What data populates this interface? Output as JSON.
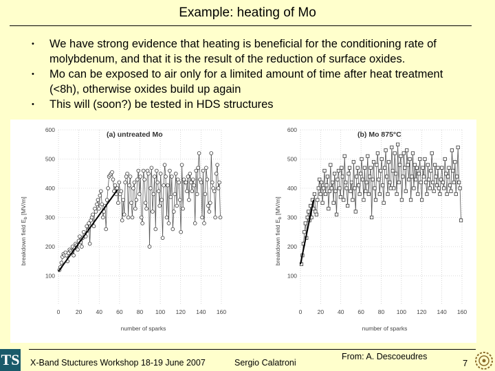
{
  "slide": {
    "title": "Example: heating of Mo",
    "bullets": [
      "We have strong evidence that heating is beneficial for the conditioning rate of molybdenum, and that it is the result of the reduction of surface oxides.",
      "Mo can be exposed to air only for a limited amount of time after heat treatment (<8h), otherwise oxides build up again",
      "This will (soon?) be tested in HDS structures"
    ],
    "bullet_glyph": "•"
  },
  "footer": {
    "event": "X-Band Stuctures Workshop 18-19 June 2007",
    "author": "Sergio Calatroni",
    "credit": "From: A. Descoeudres",
    "page": "7",
    "logo_left_icon": "ts-logo-icon",
    "logo_right_icon": "gear-emblem-icon",
    "logo_left_text": "TS"
  },
  "chart_data": [
    {
      "type": "scatter",
      "title": "(a) untreated Mo",
      "xlabel": "number of sparks",
      "ylabel": "breakdown field E",
      "ylabel_subscript": "b",
      "ylabel_unit": "[MV/m]",
      "xlim": [
        0,
        160
      ],
      "ylim": [
        0,
        600
      ],
      "xticks": [
        0,
        20,
        40,
        60,
        80,
        100,
        120,
        140,
        160
      ],
      "yticks": [
        100,
        200,
        300,
        400,
        500,
        600
      ],
      "marker": "circle",
      "points_y": [
        120,
        130,
        145,
        165,
        175,
        170,
        180,
        170,
        150,
        178,
        190,
        185,
        180,
        200,
        170,
        195,
        210,
        205,
        190,
        220,
        235,
        215,
        200,
        230,
        250,
        240,
        235,
        270,
        255,
        280,
        210,
        290,
        300,
        310,
        270,
        330,
        320,
        345,
        360,
        330,
        375,
        390,
        345,
        300,
        320,
        340,
        260,
        360,
        400,
        440,
        445,
        450,
        455,
        430,
        390,
        410,
        380,
        400,
        350,
        420,
        380,
        390,
        290,
        360,
        310,
        420,
        440,
        450,
        300,
        410,
        440,
        350,
        300,
        400,
        420,
        330,
        360,
        430,
        460,
        380,
        440,
        300,
        280,
        460,
        430,
        350,
        330,
        460,
        450,
        200,
        400,
        470,
        320,
        380,
        440,
        260,
        460,
        420,
        390,
        340,
        450,
        360,
        230,
        410,
        480,
        440,
        300,
        410,
        280,
        460,
        370,
        440,
        260,
        320,
        380,
        450,
        340,
        430,
        420,
        360,
        250,
        480,
        330,
        430,
        420,
        420,
        390,
        440,
        360,
        450,
        420,
        390,
        430,
        410,
        280,
        460,
        380,
        470,
        520,
        430,
        420,
        300,
        460,
        280,
        380,
        470,
        430,
        340,
        320,
        350,
        520,
        420,
        400,
        390,
        300,
        450,
        480,
        400,
        420,
        300
      ],
      "trend_line": {
        "x": [
          0,
          58
        ],
        "y": [
          115,
          395
        ]
      }
    },
    {
      "type": "scatter",
      "title": "(b) Mo 875°C",
      "xlabel": "number of sparks",
      "ylabel": "breakdown field E",
      "ylabel_subscript": "b",
      "ylabel_unit": "[MV/m]",
      "xlim": [
        0,
        160
      ],
      "ylim": [
        0,
        600
      ],
      "xticks": [
        0,
        20,
        40,
        60,
        80,
        100,
        120,
        140,
        160
      ],
      "yticks": [
        100,
        200,
        300,
        400,
        500,
        600
      ],
      "marker": "square",
      "points_y": [
        140,
        170,
        210,
        250,
        280,
        230,
        300,
        320,
        290,
        340,
        300,
        360,
        330,
        380,
        320,
        310,
        360,
        400,
        430,
        380,
        420,
        350,
        400,
        460,
        380,
        410,
        440,
        330,
        390,
        480,
        400,
        420,
        350,
        450,
        390,
        310,
        430,
        460,
        400,
        370,
        470,
        440,
        360,
        510,
        420,
        400,
        340,
        450,
        470,
        390,
        420,
        360,
        490,
        400,
        320,
        440,
        470,
        410,
        380,
        450,
        500,
        430,
        360,
        470,
        390,
        420,
        510,
        380,
        440,
        470,
        300,
        430,
        490,
        400,
        360,
        480,
        520,
        430,
        380,
        460,
        500,
        410,
        350,
        470,
        530,
        440,
        380,
        490,
        420,
        400,
        540,
        460,
        400,
        520,
        450,
        380,
        550,
        420,
        480,
        510,
        360,
        440,
        520,
        470,
        390,
        530,
        480,
        430,
        500,
        360,
        440,
        520,
        400,
        480,
        430,
        470,
        380,
        450,
        500,
        420,
        360,
        470,
        440,
        500,
        420,
        380,
        480,
        430,
        400,
        460,
        520,
        420,
        390,
        480,
        440,
        410,
        470,
        400,
        380,
        430,
        470,
        420,
        400,
        500,
        450,
        380,
        440,
        470,
        410,
        390,
        530,
        460,
        420,
        490,
        380,
        440,
        540,
        420,
        400,
        290
      ],
      "trend_line": {
        "x": [
          0,
          13
        ],
        "y": [
          140,
          360
        ]
      }
    }
  ]
}
